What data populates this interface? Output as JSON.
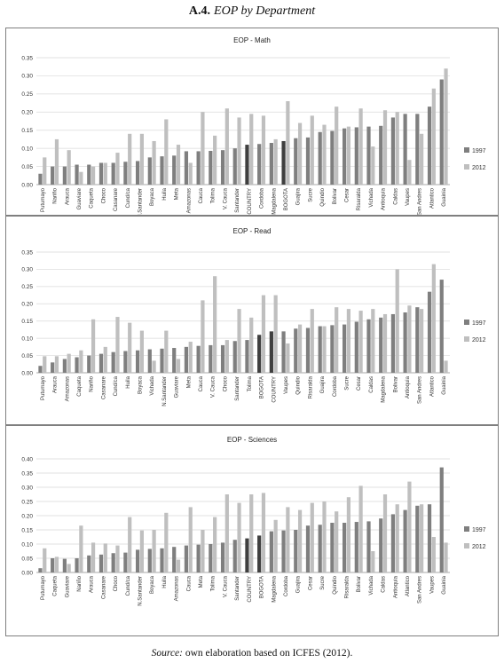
{
  "figure": {
    "label": "A.4.",
    "title": "EOP by Department",
    "source_label": "Source:",
    "source_text": "own elaboration based on ICFES (2012)."
  },
  "colors": {
    "s1997": "#7f7f7f",
    "s2012": "#bfbfbf",
    "highlight1997": "#3f3f3f",
    "grid": "#d9d9d9",
    "axis": "#8c8c8c"
  },
  "chart_data": [
    {
      "type": "bar",
      "title": "EOP - Math",
      "ylim": [
        0,
        0.35
      ],
      "yticks": [
        "0.00",
        "0.05",
        "0.10",
        "0.15",
        "0.20",
        "0.25",
        "0.30",
        "0.35"
      ],
      "grid": true,
      "legend_position": "right",
      "highlight_categories": [
        "COUNTRY",
        "BOGOTA"
      ],
      "categories": [
        "Putumayo",
        "Nariño",
        "Arauca",
        "Guaviare",
        "Caqueta",
        "Choco",
        "Casanare",
        "Cund/ca",
        "N.Santander",
        "Boyaca",
        "Huila",
        "Meta",
        "Amazonas",
        "Cauca",
        "Tolima",
        "V. Cauca",
        "Santander",
        "COUNTRY",
        "Cordoba",
        "Magdalena",
        "BOGOTA",
        "Guajira",
        "Sucre",
        "Quindio",
        "Bolivar",
        "Cesar",
        "Risaralda",
        "Vichada",
        "Antioquia",
        "Caldas",
        "Vaupes",
        "San Andres",
        "Atlantico",
        "Guainia"
      ],
      "series": [
        {
          "name": "1997",
          "values": [
            0.03,
            0.05,
            0.05,
            0.055,
            0.055,
            0.06,
            0.06,
            0.063,
            0.065,
            0.075,
            0.078,
            0.08,
            0.092,
            0.092,
            0.093,
            0.095,
            0.1,
            0.11,
            0.112,
            0.115,
            0.12,
            0.128,
            0.13,
            0.145,
            0.148,
            0.155,
            0.158,
            0.16,
            0.162,
            0.185,
            0.195,
            0.195,
            0.215,
            0.29
          ]
        },
        {
          "name": "2012",
          "values": [
            0.075,
            0.125,
            0.095,
            0.035,
            0.05,
            0.06,
            0.088,
            0.14,
            0.14,
            0.12,
            0.18,
            0.11,
            0.06,
            0.2,
            0.135,
            0.21,
            0.185,
            0.195,
            0.19,
            0.125,
            0.23,
            0.17,
            0.19,
            0.165,
            0.215,
            0.16,
            0.21,
            0.105,
            0.205,
            0.2,
            0.068,
            0.14,
            0.265,
            0.32
          ]
        }
      ]
    },
    {
      "type": "bar",
      "title": "EOP - Read",
      "ylim": [
        0,
        0.35
      ],
      "yticks": [
        "0.00",
        "0.05",
        "0.10",
        "0.15",
        "0.20",
        "0.25",
        "0.30",
        "0.35"
      ],
      "grid": true,
      "legend_position": "right",
      "highlight_categories": [
        "BOGOTA",
        "COUNTRY"
      ],
      "categories": [
        "Putumayo",
        "Arauca",
        "Amazonas",
        "Caqueta",
        "Nariño",
        "Casanare",
        "Cund/ca",
        "Huila",
        "Boyaca",
        "Vichada",
        "N.Santander",
        "Guaviare",
        "Meta",
        "Cauca",
        "V. Cauca",
        "Choco",
        "Santander",
        "Tolima",
        "BOGOTA",
        "COUNTRY",
        "Vaupes",
        "Quindio",
        "Risaralda",
        "Guajira",
        "Cordoba",
        "Sucre",
        "Cesar",
        "Caldas",
        "Magdalena",
        "Bolivar",
        "Antioquia",
        "San Andres",
        "Atlantico",
        "Guainia"
      ],
      "series": [
        {
          "name": "1997",
          "values": [
            0.02,
            0.03,
            0.04,
            0.045,
            0.05,
            0.055,
            0.06,
            0.063,
            0.065,
            0.068,
            0.07,
            0.072,
            0.075,
            0.078,
            0.08,
            0.08,
            0.092,
            0.095,
            0.11,
            0.12,
            0.12,
            0.128,
            0.13,
            0.135,
            0.138,
            0.14,
            0.148,
            0.155,
            0.16,
            0.17,
            0.175,
            0.19,
            0.235,
            0.27
          ]
        },
        {
          "name": "2012",
          "values": [
            0.048,
            0.048,
            0.055,
            0.065,
            0.155,
            0.075,
            0.162,
            0.145,
            0.122,
            0.035,
            0.122,
            0.04,
            0.09,
            0.21,
            0.28,
            0.095,
            0.185,
            0.16,
            0.225,
            0.225,
            0.085,
            0.14,
            0.185,
            0.135,
            0.19,
            0.185,
            0.18,
            0.185,
            0.17,
            0.3,
            0.195,
            0.185,
            0.315,
            0.035
          ]
        }
      ]
    },
    {
      "type": "bar",
      "title": "EOP - Sciences",
      "ylim": [
        0,
        0.4
      ],
      "yticks": [
        "0.00",
        "0.05",
        "0.10",
        "0.15",
        "0.20",
        "0.25",
        "0.30",
        "0.35",
        "0.40"
      ],
      "grid": true,
      "legend_position": "right",
      "highlight_categories": [
        "COUNTRY",
        "BOGOTA"
      ],
      "categories": [
        "Putumayo",
        "Caqueta",
        "Guaviare",
        "Nariño",
        "Arauca",
        "Casanare",
        "Choco",
        "Cund/ca",
        "N.Santander",
        "Boyaca",
        "Huila",
        "Amazonas",
        "Cauca",
        "Meta",
        "Tolima",
        "V. Cauca",
        "Santander",
        "COUNTRY",
        "BOGOTA",
        "Magdalena",
        "Cordoba",
        "Guajira",
        "Cesar",
        "Sucre",
        "Quindio",
        "Risaralda",
        "Bolivar",
        "Vichada",
        "Caldas",
        "Antioquia",
        "Atlantico",
        "San Andres",
        "Vaupes",
        "Guainia"
      ],
      "series": [
        {
          "name": "1997",
          "values": [
            0.015,
            0.05,
            0.048,
            0.05,
            0.06,
            0.063,
            0.068,
            0.07,
            0.08,
            0.083,
            0.085,
            0.09,
            0.095,
            0.098,
            0.1,
            0.105,
            0.115,
            0.12,
            0.13,
            0.145,
            0.148,
            0.15,
            0.165,
            0.168,
            0.175,
            0.175,
            0.178,
            0.18,
            0.19,
            0.205,
            0.22,
            0.235,
            0.24,
            0.37
          ]
        },
        {
          "name": "2012",
          "values": [
            0.085,
            0.055,
            0.03,
            0.165,
            0.105,
            0.102,
            0.095,
            0.195,
            0.148,
            0.15,
            0.21,
            0.045,
            0.23,
            0.15,
            0.195,
            0.275,
            0.245,
            0.275,
            0.28,
            0.185,
            0.23,
            0.22,
            0.245,
            0.25,
            0.215,
            0.265,
            0.305,
            0.075,
            0.275,
            0.24,
            0.32,
            0.24,
            0.125,
            0.105
          ]
        }
      ]
    }
  ]
}
